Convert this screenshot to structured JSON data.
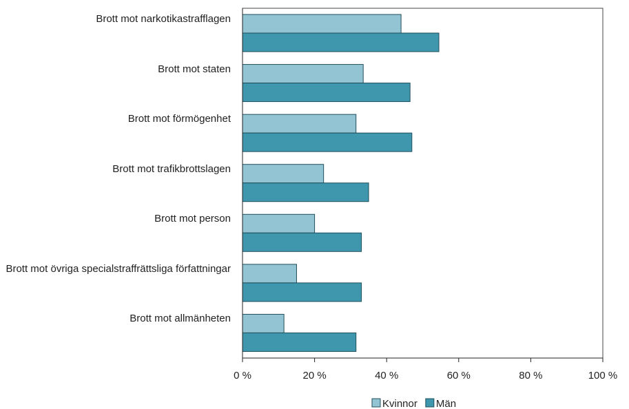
{
  "chart_data": {
    "type": "hbar",
    "categories": [
      "Brott mot narkotikastrafflagen",
      "Brott mot staten",
      "Brott mot förmögenhet",
      "Brott mot trafikbrottslagen",
      "Brott mot person",
      "Brott mot övriga specialstraffrättsliga författningar",
      "Brott mot allmänheten"
    ],
    "series": [
      {
        "name": "Kvinnor",
        "color": "#93c4d3",
        "values": [
          44,
          33.5,
          31.5,
          22.5,
          20,
          15,
          11.5
        ]
      },
      {
        "name": "Män",
        "color": "#3f97ae",
        "values": [
          54.5,
          46.5,
          47,
          35,
          33,
          33,
          31.5
        ]
      }
    ],
    "xlim": [
      0,
      100
    ],
    "xticks": [
      {
        "value": 0,
        "label": "0 %"
      },
      {
        "value": 20,
        "label": "20 %"
      },
      {
        "value": 40,
        "label": "40 %"
      },
      {
        "value": 60,
        "label": "60 %"
      },
      {
        "value": 80,
        "label": "80 %"
      },
      {
        "value": 100,
        "label": "100 %"
      }
    ],
    "legend": "bottom"
  }
}
